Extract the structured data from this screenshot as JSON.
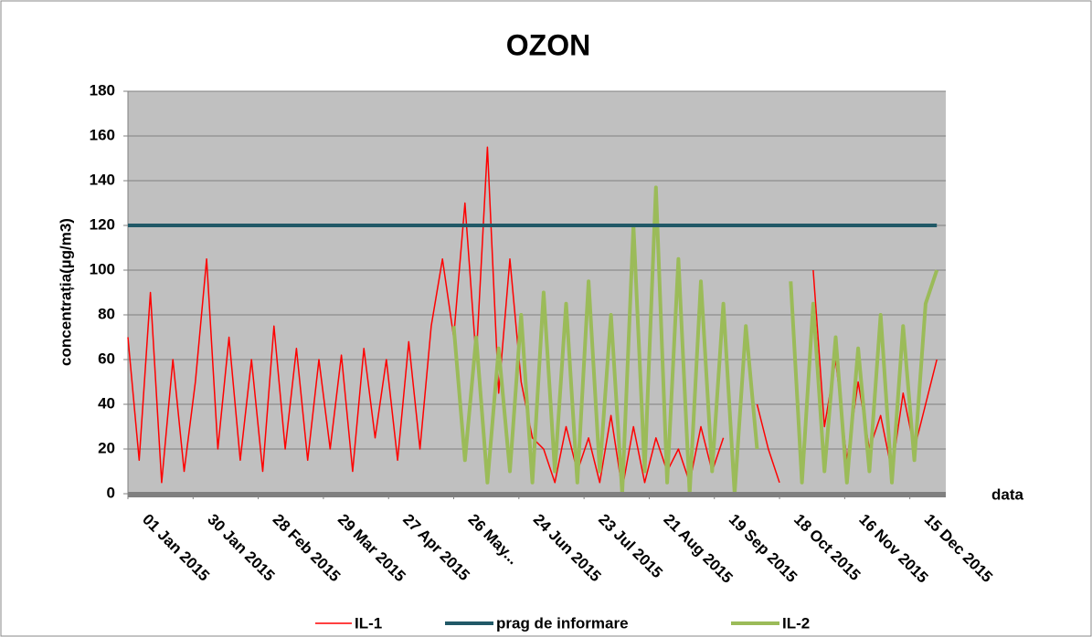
{
  "chart_data": {
    "type": "line",
    "title": "OZON",
    "y_label": "concentrația(µg/m3)",
    "x_label": "data",
    "x": [
      "2015-01-01",
      "2015-01-06",
      "2015-01-11",
      "2015-01-16",
      "2015-01-21",
      "2015-01-26",
      "2015-01-31",
      "2015-02-05",
      "2015-02-10",
      "2015-02-15",
      "2015-02-20",
      "2015-02-25",
      "2015-03-02",
      "2015-03-07",
      "2015-03-12",
      "2015-03-17",
      "2015-03-22",
      "2015-03-27",
      "2015-04-01",
      "2015-04-06",
      "2015-04-11",
      "2015-04-16",
      "2015-04-21",
      "2015-04-26",
      "2015-05-01",
      "2015-05-06",
      "2015-05-11",
      "2015-05-16",
      "2015-05-21",
      "2015-05-26",
      "2015-05-31",
      "2015-06-05",
      "2015-06-10",
      "2015-06-15",
      "2015-06-20",
      "2015-06-25",
      "2015-06-30",
      "2015-07-05",
      "2015-07-10",
      "2015-07-15",
      "2015-07-20",
      "2015-07-25",
      "2015-07-30",
      "2015-08-04",
      "2015-08-09",
      "2015-08-14",
      "2015-08-19",
      "2015-08-24",
      "2015-08-29",
      "2015-09-03",
      "2015-09-08",
      "2015-09-13",
      "2015-09-18",
      "2015-09-23",
      "2015-09-28",
      "2015-10-03",
      "2015-10-08",
      "2015-10-13",
      "2015-10-18",
      "2015-10-23",
      "2015-10-28",
      "2015-11-02",
      "2015-11-07",
      "2015-11-12",
      "2015-11-17",
      "2015-11-22",
      "2015-11-27",
      "2015-12-02",
      "2015-12-07",
      "2015-12-12",
      "2015-12-17",
      "2015-12-22",
      "2015-12-27"
    ],
    "series": [
      {
        "name": "IL-1",
        "color": "#ff0000",
        "width": 1.5,
        "values": [
          70,
          15,
          90,
          5,
          60,
          10,
          50,
          105,
          20,
          70,
          15,
          60,
          10,
          75,
          20,
          65,
          15,
          60,
          20,
          62,
          10,
          65,
          25,
          60,
          15,
          68,
          20,
          75,
          105,
          70,
          130,
          60,
          155,
          45,
          105,
          50,
          25,
          20,
          5,
          30,
          10,
          25,
          5,
          35,
          2,
          30,
          5,
          25,
          10,
          20,
          5,
          30,
          10,
          25,
          null,
          null,
          40,
          20,
          5,
          null,
          null,
          100,
          30,
          60,
          15,
          50,
          20,
          35,
          10,
          45,
          20,
          40,
          60
        ]
      },
      {
        "name": "prag de informare",
        "color": "#215967",
        "width": 4,
        "values": [
          120,
          120,
          120,
          120,
          120,
          120,
          120,
          120,
          120,
          120,
          120,
          120,
          120,
          120,
          120,
          120,
          120,
          120,
          120,
          120,
          120,
          120,
          120,
          120,
          120,
          120,
          120,
          120,
          120,
          120,
          120,
          120,
          120,
          120,
          120,
          120,
          120,
          120,
          120,
          120,
          120,
          120,
          120,
          120,
          120,
          120,
          120,
          120,
          120,
          120,
          120,
          120,
          120,
          120,
          120,
          120,
          120,
          120,
          120,
          120,
          120,
          120,
          120,
          120,
          120,
          120,
          120,
          120,
          120,
          120,
          120,
          120,
          120
        ]
      },
      {
        "name": "IL-2",
        "color": "#9bbb59",
        "width": 4,
        "values": [
          null,
          null,
          null,
          null,
          null,
          null,
          null,
          null,
          null,
          null,
          null,
          null,
          null,
          null,
          null,
          null,
          null,
          null,
          null,
          null,
          null,
          null,
          null,
          null,
          null,
          null,
          null,
          null,
          null,
          75,
          15,
          70,
          5,
          65,
          10,
          80,
          5,
          90,
          10,
          85,
          5,
          95,
          10,
          80,
          0,
          120,
          10,
          137,
          5,
          105,
          0,
          95,
          10,
          85,
          0,
          75,
          20,
          null,
          null,
          95,
          5,
          85,
          10,
          70,
          5,
          65,
          10,
          80,
          5,
          75,
          15,
          85,
          100
        ]
      }
    ],
    "xlim": [
      "2015-01-01",
      "2015-12-31"
    ],
    "xticks": [
      {
        "value": "2015-01-01",
        "label": "01 Jan 2015"
      },
      {
        "value": "2015-01-30",
        "label": "30 Jan 2015"
      },
      {
        "value": "2015-02-28",
        "label": "28 Feb 2015"
      },
      {
        "value": "2015-03-29",
        "label": "29 Mar 2015"
      },
      {
        "value": "2015-04-27",
        "label": "27 Apr 2015"
      },
      {
        "value": "2015-05-26",
        "label": "26 May..."
      },
      {
        "value": "2015-06-24",
        "label": "24 Jun 2015"
      },
      {
        "value": "2015-07-23",
        "label": "23 Jul 2015"
      },
      {
        "value": "2015-08-21",
        "label": "21 Aug 2015"
      },
      {
        "value": "2015-09-19",
        "label": "19 Sep 2015"
      },
      {
        "value": "2015-10-18",
        "label": "18 Oct 2015"
      },
      {
        "value": "2015-11-16",
        "label": "16 Nov 2015"
      },
      {
        "value": "2015-12-15",
        "label": "15 Dec 2015"
      }
    ],
    "ylim": [
      0,
      180
    ],
    "yticks": [
      0,
      20,
      40,
      60,
      80,
      100,
      120,
      140,
      160,
      180
    ],
    "grid": true,
    "legend": "bottom"
  }
}
